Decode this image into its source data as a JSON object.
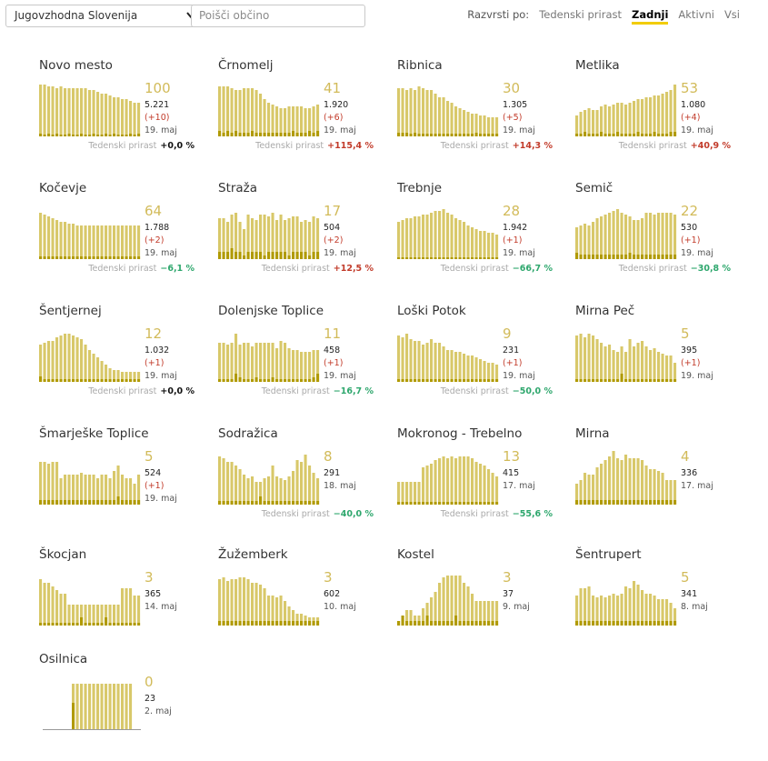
{
  "toolbar": {
    "region": "Jugovzhodna Slovenija",
    "search_placeholder": "Poišči občino",
    "sort_label": "Razvrsti po:",
    "sort_options": [
      "Tedenski prirast",
      "Zadnji",
      "Aktivni",
      "Vsi"
    ],
    "sort_active": "Zadnji"
  },
  "colors": {
    "bar": "#d8c86a",
    "bar_dark": "#b09a00",
    "bignum": "#d2bb5a"
  },
  "chart_data": [
    {
      "type": "bar",
      "name": "Novo mesto",
      "big": "100",
      "total": "5.221",
      "delta": "(+10)",
      "date": "19. maj",
      "weekly_label": "Tedenski prirast",
      "weekly": "+0,0 %",
      "values": [
        57,
        57,
        55,
        55,
        53,
        55,
        53,
        53,
        53,
        53,
        53,
        53,
        51,
        51,
        49,
        47,
        47,
        45,
        43,
        43,
        41,
        41,
        39,
        37,
        37
      ],
      "new": [
        3,
        2,
        3,
        2,
        3,
        2,
        2,
        3,
        2,
        2,
        3,
        2,
        2,
        3,
        2,
        2,
        3,
        2,
        3,
        2,
        2,
        2,
        3,
        2,
        3
      ]
    },
    {
      "type": "bar",
      "name": "Črnomelj",
      "big": "41",
      "total": "1.920",
      "delta": "(+6)",
      "date": "19. maj",
      "weekly_label": "Tedenski prirast",
      "weekly": "+115,4 %",
      "values": [
        55,
        55,
        55,
        53,
        51,
        51,
        53,
        53,
        53,
        51,
        47,
        41,
        37,
        35,
        33,
        31,
        31,
        33,
        33,
        33,
        33,
        31,
        31,
        33,
        35
      ],
      "new": [
        6,
        4,
        6,
        4,
        6,
        4,
        4,
        4,
        6,
        4,
        4,
        4,
        4,
        4,
        4,
        4,
        4,
        4,
        6,
        4,
        4,
        4,
        6,
        4,
        6
      ]
    },
    {
      "type": "bar",
      "name": "Ribnica",
      "big": "30",
      "total": "1.305",
      "delta": "(+5)",
      "date": "19. maj",
      "weekly_label": "Tedenski prirast",
      "weekly": "+14,3 %",
      "values": [
        53,
        53,
        51,
        53,
        51,
        55,
        53,
        51,
        51,
        47,
        43,
        43,
        39,
        37,
        33,
        31,
        29,
        27,
        25,
        25,
        23,
        23,
        21,
        21,
        21
      ],
      "new": [
        4,
        4,
        4,
        3,
        4,
        3,
        3,
        3,
        3,
        3,
        3,
        3,
        3,
        3,
        3,
        3,
        3,
        3,
        3,
        4,
        3,
        3,
        3,
        3,
        3
      ]
    },
    {
      "type": "bar",
      "name": "Metlika",
      "big": "53",
      "total": "1.080",
      "delta": "(+4)",
      "date": "19. maj",
      "weekly_label": "Tedenski prirast",
      "weekly": "+40,9 %",
      "values": [
        23,
        27,
        29,
        31,
        29,
        29,
        33,
        35,
        33,
        35,
        37,
        37,
        35,
        37,
        39,
        41,
        41,
        43,
        43,
        45,
        45,
        47,
        49,
        51,
        57
      ],
      "new": [
        3,
        3,
        5,
        3,
        3,
        3,
        5,
        3,
        3,
        3,
        5,
        3,
        3,
        3,
        3,
        5,
        3,
        3,
        3,
        5,
        3,
        3,
        3,
        5,
        5
      ]
    },
    {
      "type": "bar",
      "name": "Kočevje",
      "big": "64",
      "total": "1.788",
      "delta": "(+2)",
      "date": "19. maj",
      "weekly_label": "Tedenski prirast",
      "weekly": "−6,1 %",
      "values": [
        51,
        49,
        47,
        45,
        43,
        41,
        41,
        39,
        39,
        37,
        37,
        37,
        37,
        37,
        37,
        37,
        37,
        37,
        37,
        37,
        37,
        37,
        37,
        37,
        37
      ],
      "new": [
        3,
        3,
        3,
        3,
        3,
        3,
        3,
        3,
        3,
        3,
        3,
        3,
        3,
        3,
        3,
        3,
        3,
        3,
        3,
        3,
        3,
        3,
        3,
        3,
        3
      ]
    },
    {
      "type": "bar",
      "name": "Straža",
      "big": "17",
      "total": "504",
      "delta": "(+2)",
      "date": "19. maj",
      "weekly_label": "Tedenski prirast",
      "weekly": "+12,5 %",
      "values": [
        45,
        45,
        41,
        49,
        51,
        41,
        33,
        49,
        45,
        43,
        49,
        49,
        47,
        51,
        43,
        49,
        43,
        45,
        47,
        47,
        41,
        43,
        41,
        47,
        45
      ],
      "new": [
        8,
        8,
        8,
        12,
        8,
        8,
        4,
        8,
        8,
        8,
        8,
        4,
        8,
        8,
        8,
        8,
        8,
        4,
        8,
        8,
        8,
        8,
        4,
        8,
        8
      ]
    },
    {
      "type": "bar",
      "name": "Trebnje",
      "big": "28",
      "total": "1.942",
      "delta": "(+1)",
      "date": "19. maj",
      "weekly_label": "Tedenski prirast",
      "weekly": "−66,7 %",
      "values": [
        41,
        43,
        45,
        45,
        47,
        47,
        49,
        49,
        51,
        53,
        53,
        55,
        51,
        49,
        45,
        43,
        41,
        37,
        35,
        33,
        31,
        31,
        29,
        29,
        27
      ],
      "new": [
        2,
        2,
        2,
        2,
        2,
        2,
        2,
        2,
        2,
        2,
        2,
        2,
        2,
        2,
        2,
        2,
        2,
        2,
        2,
        2,
        2,
        2,
        2,
        2,
        2
      ]
    },
    {
      "type": "bar",
      "name": "Semič",
      "big": "22",
      "total": "530",
      "delta": "(+1)",
      "date": "19. maj",
      "weekly_label": "Tedenski prirast",
      "weekly": "−30,8 %",
      "values": [
        35,
        37,
        39,
        37,
        41,
        45,
        47,
        49,
        51,
        53,
        55,
        51,
        49,
        47,
        43,
        43,
        45,
        51,
        51,
        49,
        51,
        51,
        51,
        51,
        49
      ],
      "new": [
        7,
        5,
        5,
        5,
        5,
        5,
        5,
        5,
        5,
        5,
        5,
        5,
        5,
        7,
        5,
        5,
        5,
        5,
        5,
        5,
        5,
        5,
        5,
        5,
        5
      ]
    },
    {
      "type": "bar",
      "name": "Šentjernej",
      "big": "12",
      "total": "1.032",
      "delta": "(+1)",
      "date": "19. maj",
      "weekly_label": "Tedenski prirast",
      "weekly": "+0,0 %",
      "values": [
        41,
        43,
        45,
        45,
        49,
        51,
        53,
        53,
        51,
        49,
        47,
        41,
        35,
        31,
        27,
        23,
        19,
        15,
        13,
        13,
        11,
        11,
        11,
        11,
        11
      ],
      "new": [
        6,
        3,
        3,
        3,
        3,
        3,
        3,
        3,
        3,
        3,
        3,
        3,
        3,
        3,
        3,
        3,
        3,
        3,
        3,
        3,
        3,
        3,
        3,
        3,
        3
      ]
    },
    {
      "type": "bar",
      "name": "Dolenjske Toplice",
      "big": "11",
      "total": "458",
      "delta": "(+1)",
      "date": "19. maj",
      "weekly_label": "Tedenski prirast",
      "weekly": "−16,7 %",
      "values": [
        43,
        43,
        41,
        43,
        53,
        41,
        43,
        43,
        39,
        43,
        43,
        43,
        43,
        43,
        37,
        45,
        43,
        37,
        35,
        35,
        33,
        33,
        33,
        35,
        35
      ],
      "new": [
        3,
        3,
        3,
        3,
        9,
        5,
        3,
        3,
        3,
        5,
        3,
        3,
        3,
        5,
        3,
        3,
        3,
        3,
        3,
        3,
        3,
        3,
        3,
        5,
        9
      ]
    },
    {
      "type": "bar",
      "name": "Loški Potok",
      "big": "9",
      "total": "231",
      "delta": "(+1)",
      "date": "19. maj",
      "weekly_label": "Tedenski prirast",
      "weekly": "−50,0 %",
      "values": [
        51,
        49,
        53,
        47,
        45,
        45,
        41,
        43,
        47,
        43,
        43,
        39,
        35,
        35,
        33,
        33,
        31,
        29,
        29,
        27,
        25,
        23,
        21,
        21,
        19
      ],
      "new": [
        3,
        3,
        3,
        3,
        3,
        3,
        3,
        3,
        3,
        3,
        3,
        3,
        3,
        3,
        3,
        3,
        3,
        3,
        3,
        3,
        3,
        3,
        3,
        3,
        3
      ]
    },
    {
      "type": "bar",
      "name": "Mirna Peč",
      "big": "5",
      "total": "395",
      "delta": "(+1)",
      "date": "19. maj",
      "weekly_label": "",
      "values": [
        51,
        53,
        49,
        53,
        51,
        47,
        43,
        39,
        41,
        35,
        33,
        39,
        33,
        47,
        39,
        43,
        45,
        39,
        35,
        37,
        33,
        31,
        29,
        29,
        21
      ],
      "new": [
        3,
        3,
        3,
        3,
        3,
        3,
        3,
        3,
        3,
        3,
        3,
        9,
        3,
        3,
        3,
        3,
        3,
        3,
        3,
        3,
        3,
        3,
        3,
        3,
        3
      ]
    },
    {
      "type": "bar",
      "name": "Šmarješke Toplice",
      "big": "5",
      "total": "524",
      "delta": "(+1)",
      "date": "19. maj",
      "weekly_label": "",
      "values": [
        47,
        47,
        45,
        47,
        47,
        29,
        33,
        33,
        33,
        33,
        35,
        33,
        33,
        33,
        29,
        33,
        33,
        29,
        37,
        43,
        33,
        29,
        29,
        23,
        33
      ],
      "new": [
        5,
        5,
        5,
        5,
        5,
        5,
        5,
        5,
        5,
        5,
        5,
        5,
        5,
        5,
        5,
        5,
        5,
        5,
        5,
        9,
        5,
        5,
        5,
        5,
        5
      ]
    },
    {
      "type": "bar",
      "name": "Sodražica",
      "big": "8",
      "total": "291",
      "delta": "",
      "date": "18. maj",
      "weekly_label": "Tedenski prirast",
      "weekly": "−40,0 %",
      "values": [
        53,
        51,
        47,
        47,
        43,
        39,
        33,
        29,
        31,
        25,
        25,
        29,
        31,
        43,
        31,
        29,
        27,
        31,
        37,
        49,
        47,
        55,
        43,
        35,
        29
      ],
      "new": [
        4,
        4,
        4,
        4,
        4,
        4,
        4,
        4,
        4,
        4,
        9,
        4,
        4,
        4,
        4,
        4,
        4,
        4,
        4,
        4,
        4,
        4,
        4,
        4,
        4
      ]
    },
    {
      "type": "bar",
      "name": "Mokronog - Trebelno",
      "big": "13",
      "total": "415",
      "delta": "",
      "date": "17. maj",
      "weekly_label": "Tedenski prirast",
      "weekly": "−55,6 %",
      "values": [
        25,
        25,
        25,
        25,
        25,
        25,
        41,
        43,
        45,
        49,
        51,
        53,
        51,
        53,
        51,
        53,
        53,
        53,
        51,
        47,
        45,
        43,
        39,
        35,
        31
      ],
      "new": [
        3,
        3,
        3,
        3,
        3,
        3,
        3,
        3,
        3,
        3,
        3,
        3,
        3,
        3,
        3,
        3,
        3,
        3,
        3,
        3,
        3,
        3,
        3,
        3,
        3
      ]
    },
    {
      "type": "bar",
      "name": "Mirna",
      "big": "4",
      "total": "336",
      "delta": "",
      "date": "17. maj",
      "weekly_label": "",
      "values": [
        23,
        27,
        35,
        33,
        33,
        41,
        45,
        49,
        53,
        59,
        51,
        49,
        55,
        51,
        51,
        51,
        49,
        43,
        39,
        39,
        37,
        35,
        27,
        27,
        27
      ],
      "new": [
        5,
        5,
        5,
        5,
        5,
        5,
        5,
        5,
        5,
        5,
        5,
        5,
        5,
        5,
        5,
        5,
        5,
        5,
        5,
        5,
        5,
        5,
        5,
        5,
        5
      ]
    },
    {
      "type": "bar",
      "name": "Škocjan",
      "big": "3",
      "total": "365",
      "delta": "",
      "date": "14. maj",
      "weekly_label": "",
      "values": [
        51,
        47,
        47,
        43,
        39,
        35,
        35,
        23,
        23,
        23,
        23,
        23,
        23,
        23,
        23,
        23,
        23,
        23,
        23,
        23,
        41,
        41,
        41,
        33,
        33
      ],
      "new": [
        3,
        3,
        3,
        3,
        3,
        3,
        3,
        3,
        3,
        3,
        9,
        3,
        3,
        3,
        3,
        3,
        9,
        3,
        3,
        3,
        3,
        3,
        3,
        3,
        3
      ]
    },
    {
      "type": "bar",
      "name": "Žužemberk",
      "big": "3",
      "total": "602",
      "delta": "",
      "date": "10. maj",
      "weekly_label": "",
      "values": [
        51,
        53,
        49,
        51,
        51,
        53,
        53,
        51,
        47,
        47,
        45,
        41,
        33,
        33,
        31,
        33,
        27,
        21,
        17,
        13,
        13,
        11,
        9,
        9,
        9
      ],
      "new": [
        5,
        5,
        5,
        5,
        5,
        5,
        5,
        5,
        5,
        5,
        5,
        5,
        5,
        5,
        5,
        5,
        5,
        5,
        5,
        5,
        5,
        5,
        5,
        5,
        5
      ]
    },
    {
      "type": "bar",
      "name": "Kostel",
      "big": "3",
      "total": "37",
      "delta": "",
      "date": "9. maj",
      "weekly_label": "",
      "values": [
        5,
        11,
        17,
        17,
        11,
        11,
        19,
        25,
        31,
        37,
        47,
        53,
        55,
        55,
        55,
        55,
        47,
        43,
        35,
        27,
        27,
        27,
        27,
        27,
        27
      ],
      "new": [
        5,
        11,
        5,
        5,
        5,
        5,
        5,
        11,
        5,
        5,
        5,
        5,
        5,
        5,
        11,
        5,
        5,
        5,
        5,
        5,
        5,
        5,
        5,
        5,
        5
      ]
    },
    {
      "type": "bar",
      "name": "Šentrupert",
      "big": "5",
      "total": "341",
      "delta": "",
      "date": "8. maj",
      "weekly_label": "",
      "values": [
        33,
        41,
        41,
        43,
        33,
        31,
        33,
        31,
        33,
        35,
        33,
        35,
        43,
        41,
        49,
        45,
        39,
        35,
        35,
        33,
        29,
        29,
        29,
        25,
        19
      ],
      "new": [
        5,
        5,
        5,
        5,
        5,
        5,
        5,
        5,
        5,
        5,
        5,
        5,
        5,
        5,
        5,
        5,
        5,
        5,
        5,
        5,
        5,
        5,
        5,
        5,
        5
      ]
    },
    {
      "type": "bar",
      "name": "Osilnica",
      "big": "0",
      "total": "23",
      "delta": "",
      "date": "2. maj",
      "weekly_label": "",
      "values": [
        0,
        0,
        0,
        0,
        0,
        0,
        0,
        0,
        51,
        51,
        51,
        51,
        51,
        51,
        51,
        51,
        51,
        51,
        51,
        51,
        51,
        51,
        51,
        0,
        0
      ],
      "new": [
        0,
        0,
        0,
        0,
        0,
        0,
        0,
        0,
        30,
        0,
        0,
        0,
        0,
        0,
        0,
        0,
        0,
        0,
        0,
        0,
        0,
        0,
        0,
        0,
        0
      ],
      "axis": true
    }
  ]
}
